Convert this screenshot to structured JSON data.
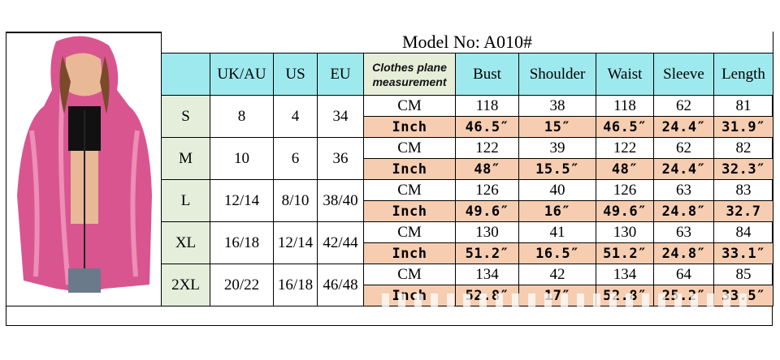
{
  "title": "Model No:  A010#",
  "headers": {
    "uk": "UK/AU",
    "us": "US",
    "eu": "EU",
    "measurement": "Clothes plane measurement",
    "bust": "Bust",
    "shoulder": "Shoulder",
    "waist": "Waist",
    "sleeve": "Sleeve",
    "length": "Length"
  },
  "units": {
    "cm": "CM",
    "inch": "Inch"
  },
  "rows": [
    {
      "size": "S",
      "uk": "8",
      "us": "4",
      "eu": "34",
      "cm": [
        "118",
        "38",
        "118",
        "62",
        "81"
      ],
      "inch": [
        "46.5″",
        "15″",
        "46.5″",
        "24.4″",
        "31.9″"
      ]
    },
    {
      "size": "M",
      "uk": "10",
      "us": "6",
      "eu": "36",
      "cm": [
        "122",
        "39",
        "122",
        "62",
        "82"
      ],
      "inch": [
        "48″",
        "15.5″",
        "48″",
        "24.4″",
        "32.3″"
      ]
    },
    {
      "size": "L",
      "uk": "12/14",
      "us": "8/10",
      "eu": "38/40",
      "cm": [
        "126",
        "40",
        "126",
        "63",
        "83"
      ],
      "inch": [
        "49.6″",
        "16″",
        "49.6″",
        "24.8″",
        "32.7"
      ]
    },
    {
      "size": "XL",
      "uk": "16/18",
      "us": "12/14",
      "eu": "42/44",
      "cm": [
        "130",
        "41",
        "130",
        "63",
        "84"
      ],
      "inch": [
        "51.2″",
        "16.5″",
        "51.2″",
        "24.8″",
        "33.1″"
      ]
    },
    {
      "size": "2XL",
      "uk": "20/22",
      "us": "16/18",
      "eu": "46/48",
      "cm": [
        "134",
        "42",
        "134",
        "64",
        "85"
      ],
      "inch": [
        "52.8″",
        "17″",
        "52.8″",
        "25.2″",
        "33.5″"
      ]
    }
  ],
  "colors": {
    "header": "#9ee9ee",
    "size_col": "#e4eedb",
    "inch_row": "#f6cdb0",
    "jacket": "#d9558f"
  }
}
